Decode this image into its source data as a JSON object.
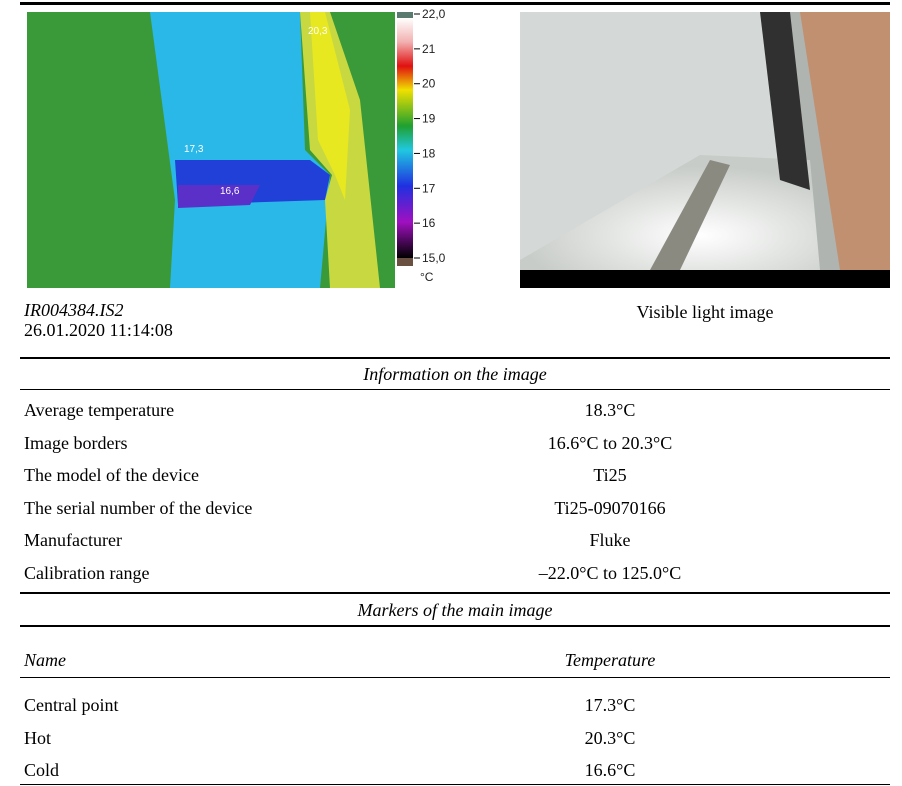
{
  "ir_image": {
    "filename": "IR004384.IS2",
    "datetime": "26.01.2020 11:14:08",
    "markers": [
      "20,3",
      "17,3",
      "16,6"
    ],
    "scale": {
      "ticks": [
        "22,0",
        "21",
        "20",
        "19",
        "18",
        "17",
        "16",
        "15,0"
      ],
      "unit": "°C"
    }
  },
  "visible_image": {
    "caption": "Visible light image"
  },
  "info": {
    "title": "Information on the image",
    "rows": [
      [
        "Average temperature",
        "18.3°C"
      ],
      [
        "Image borders",
        "16.6°C to 20.3°C"
      ],
      [
        "The model of the device",
        "Ti25"
      ],
      [
        "The serial number of the device",
        "Ti25-09070166"
      ],
      [
        "Manufacturer",
        "Fluke"
      ],
      [
        "Calibration range",
        "–22.0°C to 125.0°C"
      ]
    ]
  },
  "markers_table": {
    "title": "Markers of the main image",
    "header": [
      "Name",
      "Temperature"
    ],
    "rows": [
      [
        "Central point",
        "17.3°C"
      ],
      [
        "Hot",
        "20.3°C"
      ],
      [
        "Cold",
        "16.6°C"
      ]
    ]
  }
}
